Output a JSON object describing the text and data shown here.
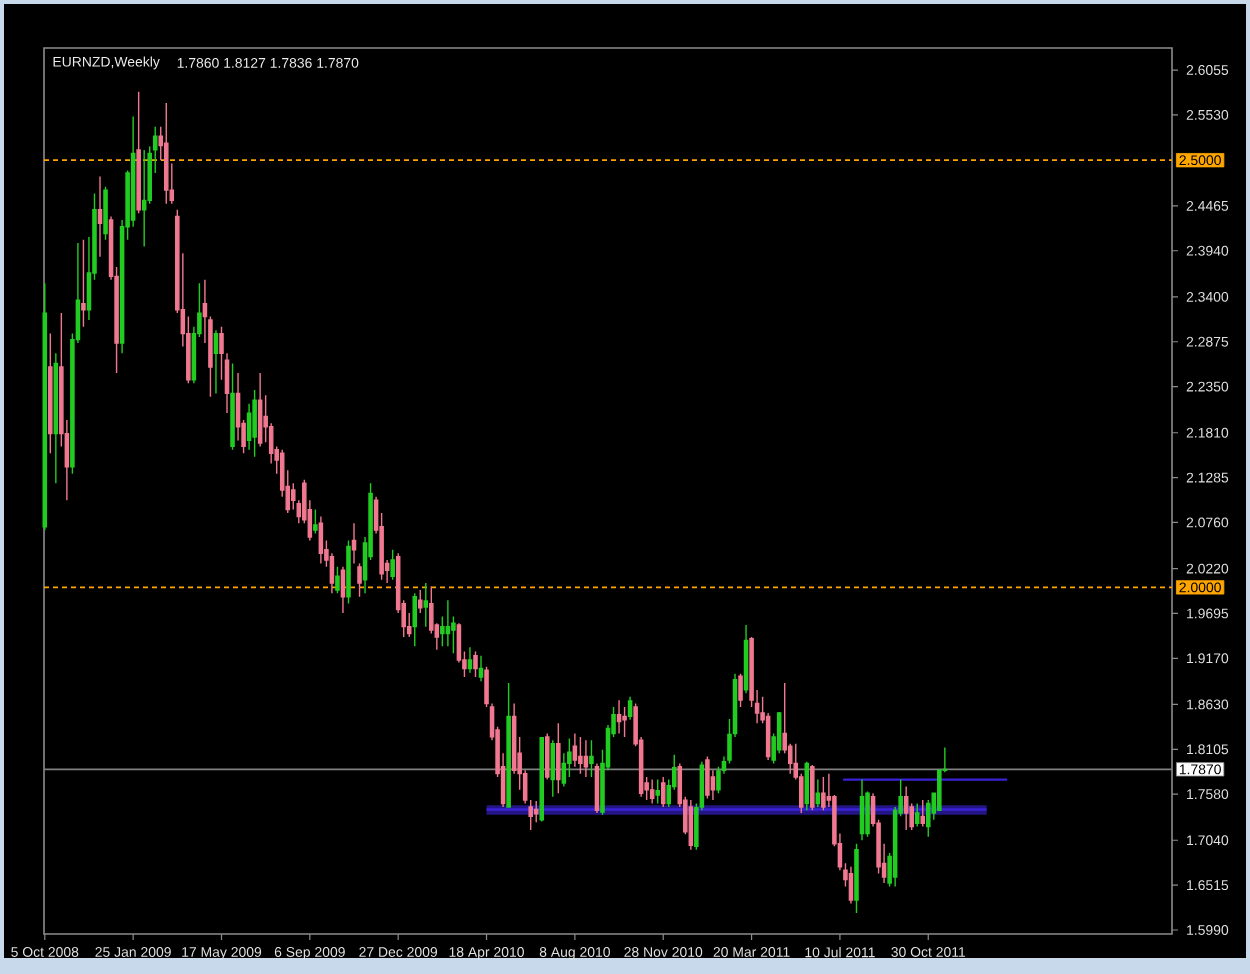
{
  "chart_data": {
    "type": "candlestick",
    "title": "EURNZD,Weekly",
    "subtitle": "1.7860 1.8127 1.7836 1.7870",
    "x": [
      "2008-10-05",
      "2008-10-12",
      "2008-10-19",
      "2008-10-26",
      "2008-11-02",
      "2008-11-09",
      "2008-11-16",
      "2008-11-23",
      "2008-11-30",
      "2008-12-07",
      "2008-12-14",
      "2008-12-21",
      "2008-12-28",
      "2009-01-04",
      "2009-01-11",
      "2009-01-18",
      "2009-01-25",
      "2009-02-01",
      "2009-02-08",
      "2009-02-15",
      "2009-02-22",
      "2009-03-01",
      "2009-03-08",
      "2009-03-15",
      "2009-03-22",
      "2009-03-29",
      "2009-04-05",
      "2009-04-12",
      "2009-04-19",
      "2009-04-26",
      "2009-05-03",
      "2009-05-10",
      "2009-05-17",
      "2009-05-24",
      "2009-05-31",
      "2009-06-07",
      "2009-06-14",
      "2009-06-21",
      "2009-06-28",
      "2009-07-05",
      "2009-07-12",
      "2009-07-19",
      "2009-07-26",
      "2009-08-02",
      "2009-08-09",
      "2009-08-16",
      "2009-08-23",
      "2009-08-30",
      "2009-09-06",
      "2009-09-13",
      "2009-09-20",
      "2009-09-27",
      "2009-10-04",
      "2009-10-11",
      "2009-10-18",
      "2009-10-25",
      "2009-11-01",
      "2009-11-08",
      "2009-11-15",
      "2009-11-22",
      "2009-11-29",
      "2009-12-06",
      "2009-12-13",
      "2009-12-20",
      "2009-12-27",
      "2010-01-03",
      "2010-01-10",
      "2010-01-17",
      "2010-01-24",
      "2010-01-31",
      "2010-02-07",
      "2010-02-14",
      "2010-02-21",
      "2010-02-28",
      "2010-03-07",
      "2010-03-14",
      "2010-03-21",
      "2010-03-28",
      "2010-04-04",
      "2010-04-11",
      "2010-04-18",
      "2010-04-25",
      "2010-05-02",
      "2010-05-09",
      "2010-05-16",
      "2010-05-23",
      "2010-05-30",
      "2010-06-06",
      "2010-06-13",
      "2010-06-20",
      "2010-06-27",
      "2010-07-04",
      "2010-07-11",
      "2010-07-18",
      "2010-07-25",
      "2010-08-01",
      "2010-08-08",
      "2010-08-15",
      "2010-08-22",
      "2010-08-29",
      "2010-09-05",
      "2010-09-12",
      "2010-09-19",
      "2010-09-26",
      "2010-10-03",
      "2010-10-10",
      "2010-10-17",
      "2010-10-24",
      "2010-10-31",
      "2010-11-07",
      "2010-11-14",
      "2010-11-21",
      "2010-11-28",
      "2010-12-05",
      "2010-12-12",
      "2010-12-19",
      "2010-12-26",
      "2011-01-02",
      "2011-01-09",
      "2011-01-16",
      "2011-01-23",
      "2011-01-30",
      "2011-02-06",
      "2011-02-13",
      "2011-02-20",
      "2011-02-27",
      "2011-03-06",
      "2011-03-13",
      "2011-03-20",
      "2011-03-27",
      "2011-04-03",
      "2011-04-10",
      "2011-04-17",
      "2011-04-24",
      "2011-05-01",
      "2011-05-08",
      "2011-05-15",
      "2011-05-22",
      "2011-05-29",
      "2011-06-05",
      "2011-06-12",
      "2011-06-19",
      "2011-06-26",
      "2011-07-03",
      "2011-07-10",
      "2011-07-17",
      "2011-07-24",
      "2011-07-31",
      "2011-08-07",
      "2011-08-14",
      "2011-08-21",
      "2011-08-28",
      "2011-09-04",
      "2011-09-11",
      "2011-09-18",
      "2011-09-25",
      "2011-10-02",
      "2011-10-09",
      "2011-10-16",
      "2011-10-23",
      "2011-10-30",
      "2011-11-06",
      "2011-11-13",
      "2011-11-20"
    ],
    "ohlc": [
      [
        2.071,
        2.356,
        2.067,
        2.321
      ],
      [
        2.258,
        2.297,
        2.157,
        2.18
      ],
      [
        2.18,
        2.274,
        2.122,
        2.262
      ],
      [
        2.258,
        2.321,
        2.165,
        2.18
      ],
      [
        2.18,
        2.196,
        2.102,
        2.141
      ],
      [
        2.141,
        2.297,
        2.133,
        2.29
      ],
      [
        2.29,
        2.403,
        2.286,
        2.336
      ],
      [
        2.332,
        2.407,
        2.305,
        2.325
      ],
      [
        2.325,
        2.41,
        2.313,
        2.368
      ],
      [
        2.368,
        2.461,
        2.36,
        2.442
      ],
      [
        2.442,
        2.481,
        2.387,
        2.426
      ],
      [
        2.414,
        2.469,
        2.407,
        2.465
      ],
      [
        2.43,
        2.434,
        2.36,
        2.364
      ],
      [
        2.364,
        2.375,
        2.251,
        2.286
      ],
      [
        2.286,
        2.43,
        2.274,
        2.422
      ],
      [
        2.422,
        2.488,
        2.407,
        2.485
      ],
      [
        2.43,
        2.551,
        2.422,
        2.508
      ],
      [
        2.512,
        2.58,
        2.438,
        2.442
      ],
      [
        2.442,
        2.512,
        2.399,
        2.453
      ],
      [
        2.453,
        2.516,
        2.449,
        2.508
      ],
      [
        2.512,
        2.539,
        2.485,
        2.528
      ],
      [
        2.528,
        2.539,
        2.5,
        2.517
      ],
      [
        2.52,
        2.567,
        2.449,
        2.465
      ],
      [
        2.465,
        2.496,
        2.449,
        2.453
      ],
      [
        2.434,
        2.442,
        2.321,
        2.325
      ],
      [
        2.325,
        2.391,
        2.282,
        2.297
      ],
      [
        2.297,
        2.317,
        2.239,
        2.243
      ],
      [
        2.243,
        2.305,
        2.239,
        2.297
      ],
      [
        2.297,
        2.356,
        2.293,
        2.321
      ],
      [
        2.332,
        2.36,
        2.286,
        2.317
      ],
      [
        2.313,
        2.317,
        2.223,
        2.258
      ],
      [
        2.274,
        2.301,
        2.227,
        2.297
      ],
      [
        2.297,
        2.305,
        2.243,
        2.274
      ],
      [
        2.266,
        2.274,
        2.204,
        2.227
      ],
      [
        2.165,
        2.262,
        2.161,
        2.227
      ],
      [
        2.227,
        2.251,
        2.172,
        2.188
      ],
      [
        2.192,
        2.196,
        2.157,
        2.165
      ],
      [
        2.172,
        2.215,
        2.161,
        2.204
      ],
      [
        2.176,
        2.231,
        2.153,
        2.219
      ],
      [
        2.219,
        2.251,
        2.165,
        2.169
      ],
      [
        2.2,
        2.225,
        2.17,
        2.188
      ],
      [
        2.188,
        2.192,
        2.145,
        2.157
      ],
      [
        2.161,
        2.165,
        2.133,
        2.149
      ],
      [
        2.157,
        2.161,
        2.106,
        2.114
      ],
      [
        2.118,
        2.137,
        2.087,
        2.091
      ],
      [
        2.114,
        2.122,
        2.091,
        2.102
      ],
      [
        2.098,
        2.102,
        2.075,
        2.083
      ],
      [
        2.122,
        2.126,
        2.075,
        2.079
      ],
      [
        2.091,
        2.102,
        2.055,
        2.059
      ],
      [
        2.067,
        2.091,
        2.063,
        2.073
      ],
      [
        2.075,
        2.083,
        2.028,
        2.04
      ],
      [
        2.044,
        2.055,
        2.024,
        2.032
      ],
      [
        2.036,
        2.04,
        1.993,
        2.005
      ],
      [
        1.997,
        2.024,
        1.993,
        2.013
      ],
      [
        2.02,
        2.024,
        1.97,
        1.989
      ],
      [
        1.989,
        2.055,
        1.981,
        2.048
      ],
      [
        2.055,
        2.075,
        2.028,
        2.044
      ],
      [
        2.024,
        2.028,
        1.989,
        2.005
      ],
      [
        2.009,
        2.059,
        1.993,
        2.052
      ],
      [
        2.036,
        2.122,
        2.032,
        2.11
      ],
      [
        2.102,
        2.106,
        2.063,
        2.067
      ],
      [
        2.071,
        2.087,
        2.009,
        2.016
      ],
      [
        2.028,
        2.032,
        2.005,
        2.02
      ],
      [
        2.013,
        2.044,
        2.009,
        2.032
      ],
      [
        2.036,
        2.04,
        1.97,
        1.974
      ],
      [
        1.981,
        1.985,
        1.942,
        1.954
      ],
      [
        1.954,
        1.97,
        1.942,
        1.946
      ],
      [
        1.954,
        1.993,
        1.931,
        1.989
      ],
      [
        1.985,
        1.997,
        1.97,
        1.976
      ],
      [
        1.977,
        2.005,
        1.954,
        1.984
      ],
      [
        1.981,
        2.001,
        1.946,
        1.95
      ],
      [
        1.956,
        1.958,
        1.927,
        1.942
      ],
      [
        1.946,
        1.966,
        1.931,
        1.954
      ],
      [
        1.946,
        1.985,
        1.931,
        1.954
      ],
      [
        1.95,
        1.966,
        1.923,
        1.958
      ],
      [
        1.956,
        1.958,
        1.912,
        1.915
      ],
      [
        1.915,
        1.925,
        1.895,
        1.905
      ],
      [
        1.905,
        1.93,
        1.9,
        1.915
      ],
      [
        1.92,
        1.925,
        1.895,
        1.905
      ],
      [
        1.895,
        1.92,
        1.89,
        1.905
      ],
      [
        1.903,
        1.907,
        1.86,
        1.864
      ],
      [
        1.86,
        1.864,
        1.821,
        1.825
      ],
      [
        1.833,
        1.837,
        1.778,
        1.782
      ],
      [
        1.79,
        1.806,
        1.743,
        1.747
      ],
      [
        1.743,
        1.888,
        1.742,
        1.849
      ],
      [
        1.849,
        1.864,
        1.782,
        1.786
      ],
      [
        1.806,
        1.825,
        1.763,
        1.782
      ],
      [
        1.782,
        1.786,
        1.747,
        1.751
      ],
      [
        1.743,
        1.751,
        1.716,
        1.732
      ],
      [
        1.74,
        1.75,
        1.725,
        1.735
      ],
      [
        1.728,
        1.825,
        1.726,
        1.824
      ],
      [
        1.825,
        1.829,
        1.775,
        1.778
      ],
      [
        1.775,
        1.821,
        1.755,
        1.817
      ],
      [
        1.817,
        1.841,
        1.759,
        1.775
      ],
      [
        1.771,
        1.806,
        1.767,
        1.794
      ],
      [
        1.794,
        1.823,
        1.778,
        1.807
      ],
      [
        1.814,
        1.829,
        1.79,
        1.798
      ],
      [
        1.802,
        1.825,
        1.782,
        1.794
      ],
      [
        1.802,
        1.821,
        1.778,
        1.79
      ],
      [
        1.794,
        1.821,
        1.778,
        1.802
      ],
      [
        1.79,
        1.794,
        1.736,
        1.739
      ],
      [
        1.737,
        1.81,
        1.734,
        1.794
      ],
      [
        1.79,
        1.839,
        1.786,
        1.835
      ],
      [
        1.829,
        1.86,
        1.825,
        1.851
      ],
      [
        1.851,
        1.868,
        1.829,
        1.843
      ],
      [
        1.849,
        1.86,
        1.825,
        1.845
      ],
      [
        1.849,
        1.872,
        1.845,
        1.867
      ],
      [
        1.86,
        1.864,
        1.814,
        1.817
      ],
      [
        1.821,
        1.825,
        1.755,
        1.759
      ],
      [
        1.771,
        1.778,
        1.751,
        1.763
      ],
      [
        1.763,
        1.775,
        1.747,
        1.753
      ],
      [
        1.757,
        1.775,
        1.747,
        1.762
      ],
      [
        1.771,
        1.778,
        1.743,
        1.747
      ],
      [
        1.747,
        1.775,
        1.743,
        1.768
      ],
      [
        1.767,
        1.804,
        1.763,
        1.789
      ],
      [
        1.79,
        1.794,
        1.743,
        1.747
      ],
      [
        1.751,
        1.755,
        1.711,
        1.714
      ],
      [
        1.743,
        1.751,
        1.693,
        1.698
      ],
      [
        1.697,
        1.747,
        1.693,
        1.742
      ],
      [
        1.743,
        1.796,
        1.739,
        1.792
      ],
      [
        1.798,
        1.802,
        1.753,
        1.757
      ],
      [
        1.778,
        1.786,
        1.751,
        1.763
      ],
      [
        1.763,
        1.79,
        1.759,
        1.785
      ],
      [
        1.786,
        1.802,
        1.782,
        1.796
      ],
      [
        1.798,
        1.846,
        1.794,
        1.828
      ],
      [
        1.829,
        1.899,
        1.825,
        1.892
      ],
      [
        1.896,
        1.899,
        1.86,
        1.868
      ],
      [
        1.88,
        1.956,
        1.876,
        1.938
      ],
      [
        1.94,
        1.942,
        1.86,
        1.868
      ],
      [
        1.864,
        1.88,
        1.841,
        1.853
      ],
      [
        1.853,
        1.872,
        1.841,
        1.845
      ],
      [
        1.849,
        1.853,
        1.798,
        1.802
      ],
      [
        1.798,
        1.829,
        1.794,
        1.825
      ],
      [
        1.81,
        1.854,
        1.806,
        1.853
      ],
      [
        1.829,
        1.888,
        1.806,
        1.81
      ],
      [
        1.814,
        1.817,
        1.782,
        1.794
      ],
      [
        1.794,
        1.817,
        1.775,
        1.778
      ],
      [
        1.778,
        1.782,
        1.736,
        1.743
      ],
      [
        1.747,
        1.796,
        1.739,
        1.794
      ],
      [
        1.79,
        1.792,
        1.739,
        1.743
      ],
      [
        1.747,
        1.775,
        1.743,
        1.759
      ],
      [
        1.759,
        1.778,
        1.739,
        1.743
      ],
      [
        1.755,
        1.782,
        1.743,
        1.751
      ],
      [
        1.755,
        1.757,
        1.697,
        1.7
      ],
      [
        1.7,
        1.712,
        1.669,
        1.673
      ],
      [
        1.669,
        1.677,
        1.65,
        1.658
      ],
      [
        1.665,
        1.673,
        1.63,
        1.634
      ],
      [
        1.634,
        1.7,
        1.619,
        1.693
      ],
      [
        1.712,
        1.775,
        1.704,
        1.755
      ],
      [
        1.712,
        1.761,
        1.708,
        1.759
      ],
      [
        1.755,
        1.759,
        1.72,
        1.724
      ],
      [
        1.724,
        1.728,
        1.665,
        1.673
      ],
      [
        1.677,
        1.7,
        1.654,
        1.661
      ],
      [
        1.654,
        1.689,
        1.65,
        1.685
      ],
      [
        1.661,
        1.743,
        1.65,
        1.739
      ],
      [
        1.736,
        1.775,
        1.732,
        1.755
      ],
      [
        1.755,
        1.767,
        1.716,
        1.736
      ],
      [
        1.743,
        1.747,
        1.716,
        1.72
      ],
      [
        1.724,
        1.747,
        1.72,
        1.736
      ],
      [
        1.732,
        1.751,
        1.72,
        1.724
      ],
      [
        1.72,
        1.751,
        1.708,
        1.747
      ],
      [
        1.736,
        1.759,
        1.728,
        1.759
      ],
      [
        1.739,
        1.786,
        1.739,
        1.786
      ],
      [
        1.786,
        1.8127,
        1.7836,
        1.787
      ]
    ],
    "colors": [
      "#22cc22",
      "#f07890",
      "#22cc22",
      "#f07890",
      "#f07890",
      "#22cc22",
      "#22cc22",
      "#f07890",
      "#22cc22",
      "#22cc22",
      "#f07890",
      "#22cc22",
      "#f07890",
      "#f07890",
      "#22cc22",
      "#22cc22",
      "#22cc22",
      "#f07890",
      "#22cc22",
      "#22cc22",
      "#22cc22",
      "#f07890",
      "#f07890",
      "#f07890",
      "#f07890",
      "#f07890",
      "#f07890",
      "#22cc22",
      "#22cc22",
      "#f07890",
      "#f07890",
      "#22cc22",
      "#f07890",
      "#f07890",
      "#22cc22",
      "#f07890",
      "#f07890",
      "#22cc22",
      "#22cc22",
      "#f07890",
      "#f07890",
      "#f07890",
      "#f07890",
      "#f07890",
      "#f07890",
      "#f07890",
      "#f07890",
      "#f07890",
      "#f07890",
      "#22cc22",
      "#f07890",
      "#f07890",
      "#f07890",
      "#22cc22",
      "#f07890",
      "#22cc22",
      "#f07890",
      "#f07890",
      "#22cc22",
      "#22cc22",
      "#f07890",
      "#f07890",
      "#f07890",
      "#22cc22",
      "#f07890",
      "#f07890",
      "#f07890",
      "#22cc22",
      "#f07890",
      "#22cc22",
      "#f07890",
      "#f07890",
      "#22cc22",
      "#22cc22",
      "#22cc22",
      "#f07890",
      "#f07890",
      "#22cc22",
      "#f07890",
      "#22cc22",
      "#f07890",
      "#f07890",
      "#f07890",
      "#f07890",
      "#22cc22",
      "#f07890",
      "#f07890",
      "#f07890",
      "#f07890",
      "#f07890",
      "#22cc22",
      "#f07890",
      "#22cc22",
      "#f07890",
      "#22cc22",
      "#22cc22",
      "#f07890",
      "#f07890",
      "#f07890",
      "#22cc22",
      "#f07890",
      "#22cc22",
      "#22cc22",
      "#22cc22",
      "#f07890",
      "#f07890",
      "#22cc22",
      "#f07890",
      "#f07890",
      "#f07890",
      "#f07890",
      "#22cc22",
      "#f07890",
      "#22cc22",
      "#22cc22",
      "#f07890",
      "#f07890",
      "#f07890",
      "#22cc22",
      "#22cc22",
      "#f07890",
      "#f07890",
      "#22cc22",
      "#22cc22",
      "#22cc22",
      "#22cc22",
      "#f07890",
      "#22cc22",
      "#f07890",
      "#f07890",
      "#f07890",
      "#f07890",
      "#22cc22",
      "#22cc22",
      "#f07890",
      "#f07890",
      "#f07890",
      "#f07890",
      "#22cc22",
      "#f07890",
      "#22cc22",
      "#f07890",
      "#f07890",
      "#f07890",
      "#f07890",
      "#f07890",
      "#f07890",
      "#22cc22",
      "#22cc22",
      "#22cc22",
      "#f07890",
      "#f07890",
      "#f07890",
      "#22cc22",
      "#22cc22",
      "#22cc22",
      "#f07890",
      "#f07890",
      "#22cc22",
      "#f07890",
      "#22cc22",
      "#22cc22",
      "#22cc22",
      "#22cc22"
    ],
    "series": [
      {
        "type": "line",
        "x": [
          "2010-04-18",
          "2012-01-12"
        ],
        "values": [
          1.74,
          1.74
        ],
        "lower": [
          1.734,
          1.734
        ],
        "upper": [
          1.745,
          1.745
        ],
        "color": "#3a22d6"
      },
      {
        "type": "line",
        "x": [
          "2011-07-14",
          "2012-02-07"
        ],
        "values": [
          1.775,
          1.775
        ],
        "color": "#3a22d6"
      }
    ],
    "xlim": [
      "2008-10-04",
      "2012-09-03"
    ],
    "xticks": [
      {
        "value": "2008-10-05",
        "label": "5 Oct 2008"
      },
      {
        "value": "2009-01-25",
        "label": "25 Jan 2009"
      },
      {
        "value": "2009-05-17",
        "label": "17 May 2009"
      },
      {
        "value": "2009-09-06",
        "label": "6 Sep 2009"
      },
      {
        "value": "2009-12-27",
        "label": "27 Dec 2009"
      },
      {
        "value": "2010-04-18",
        "label": "18 Apr 2010"
      },
      {
        "value": "2010-08-08",
        "label": "8 Aug 2010"
      },
      {
        "value": "2010-11-28",
        "label": "28 Nov 2010"
      },
      {
        "value": "2011-03-20",
        "label": "20 Mar 2011"
      },
      {
        "value": "2011-07-10",
        "label": "10 Jul 2011"
      },
      {
        "value": "2011-10-30",
        "label": "30 Oct 2011"
      }
    ],
    "ylim": [
      1.5943,
      2.6313
    ],
    "yticks": [
      2.6055,
      {
        "value": 2.553,
        "label": "2.5530"
      },
      2.4465,
      {
        "value": 2.394,
        "label": "2.3940"
      },
      {
        "value": 2.34,
        "label": "2.3400"
      },
      2.2875,
      {
        "value": 2.235,
        "label": "2.2350"
      },
      {
        "value": 2.181,
        "label": "2.1810"
      },
      2.1285,
      {
        "value": 2.076,
        "label": "2.0760"
      },
      {
        "value": 2.022,
        "label": "2.0220"
      },
      1.9695,
      {
        "value": 1.917,
        "label": "1.9170"
      },
      {
        "value": 1.863,
        "label": "1.8630"
      },
      1.8105,
      {
        "value": 1.758,
        "label": "1.7580"
      },
      {
        "value": 1.704,
        "label": "1.7040"
      },
      1.6515,
      {
        "value": 1.599,
        "label": "1.5990"
      }
    ],
    "ref_lines": [
      {
        "axis": "y",
        "value": 2.5,
        "label": "2.5000",
        "color": "#ffa500",
        "line_style": "dashed"
      },
      {
        "axis": "y",
        "value": 2.0,
        "label": "2.0000",
        "color": "#ffa500",
        "line_style": "dashed"
      },
      {
        "axis": "y",
        "value": 1.787,
        "label": "1.7870",
        "color": "#808080",
        "line_style": "solid"
      }
    ]
  }
}
